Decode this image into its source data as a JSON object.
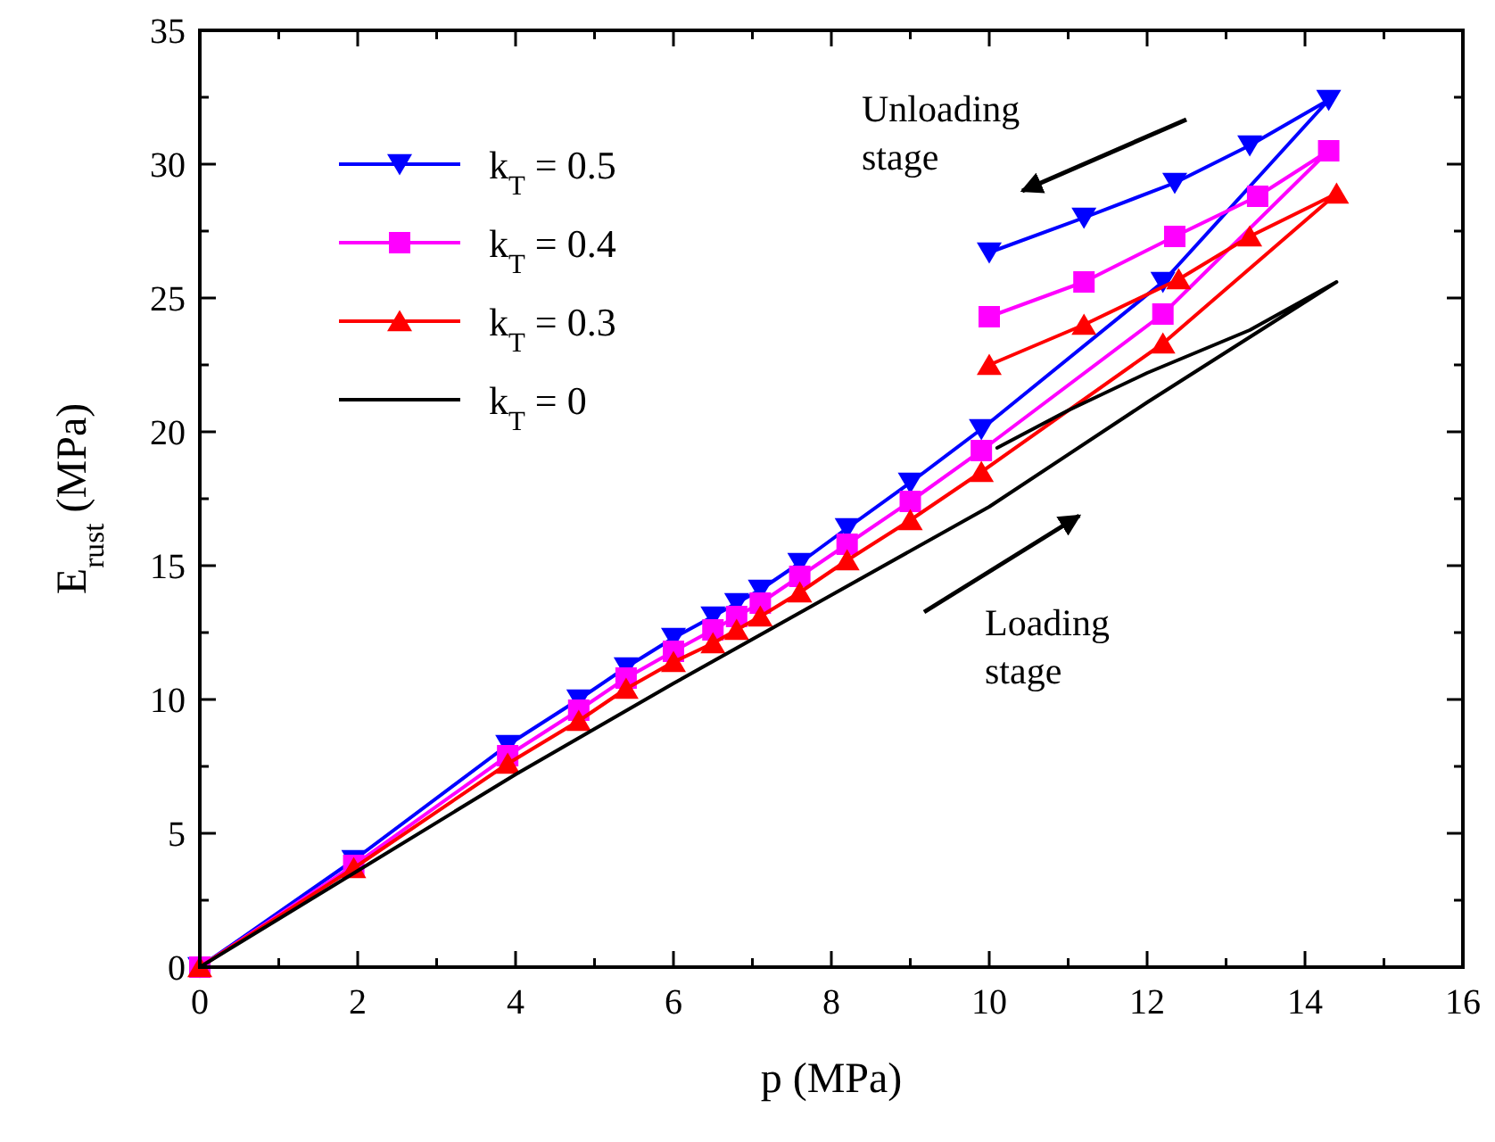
{
  "chart_data": {
    "type": "line",
    "xlabel": "p (MPa)",
    "ylabel": "E$_{rust}$ (MPa)",
    "xlim": [
      0,
      16
    ],
    "xticks": [
      0,
      {
        "value": 1,
        "label": null
      },
      2,
      {
        "value": 3,
        "label": null
      },
      4,
      {
        "value": 5,
        "label": null
      },
      6,
      {
        "value": 7,
        "label": null
      },
      8,
      {
        "value": 9,
        "label": null
      },
      10,
      {
        "value": 11,
        "label": null
      },
      12,
      {
        "value": 13,
        "label": null
      },
      14,
      {
        "value": 15,
        "label": null
      },
      16
    ],
    "ylim": [
      0,
      35
    ],
    "yticks": [
      0,
      {
        "value": 2.5,
        "label": null
      },
      5,
      {
        "value": 7.5,
        "label": null
      },
      10,
      {
        "value": 12.5,
        "label": null
      },
      15,
      {
        "value": 17.5,
        "label": null
      },
      20,
      {
        "value": 22.5,
        "label": null
      },
      25,
      {
        "value": 27.5,
        "label": null
      },
      30,
      {
        "value": 32.5,
        "label": null
      },
      35
    ],
    "grid": false,
    "legend": "top left",
    "line_style": "solid",
    "annotations": [
      "Unloading stage",
      "Loading stage"
    ],
    "series": [
      {
        "name": "k$_{T}$ = 0.5",
        "color": "#0000ff",
        "marker": "triangle-down",
        "x": [
          0,
          1.95,
          3.9,
          4.8,
          5.4,
          6.0,
          6.5,
          6.8,
          7.1,
          7.6,
          8.2,
          9.0,
          9.9,
          12.2,
          14.3,
          13.3,
          12.35,
          11.2,
          10.0
        ],
        "values": [
          0,
          4.0,
          8.3,
          10.0,
          11.2,
          12.3,
          13.1,
          13.6,
          14.1,
          15.1,
          16.4,
          18.1,
          20.1,
          25.6,
          32.4,
          30.7,
          29.3,
          28.0,
          26.7
        ]
      },
      {
        "name": "k$_{T}$ = 0.4",
        "color": "#ff00ff",
        "marker": "square",
        "x": [
          0,
          1.95,
          3.9,
          4.8,
          5.4,
          6.0,
          6.5,
          6.8,
          7.1,
          7.6,
          8.2,
          9.0,
          9.9,
          12.2,
          14.3,
          13.4,
          12.35,
          11.2,
          10.0
        ],
        "values": [
          0,
          3.8,
          7.9,
          9.6,
          10.8,
          11.8,
          12.6,
          13.1,
          13.6,
          14.6,
          15.8,
          17.4,
          19.3,
          24.4,
          30.5,
          28.8,
          27.3,
          25.6,
          24.3
        ]
      },
      {
        "name": "k$_{T}$ = 0.3",
        "color": "#ff0000",
        "marker": "triangle",
        "x": [
          0,
          1.95,
          3.9,
          4.8,
          5.4,
          6.0,
          6.5,
          6.8,
          7.1,
          7.6,
          8.2,
          9.0,
          9.9,
          12.2,
          14.4,
          13.3,
          12.4,
          11.2,
          10.0
        ],
        "values": [
          0,
          3.7,
          7.6,
          9.2,
          10.4,
          11.4,
          12.1,
          12.6,
          13.1,
          14.0,
          15.2,
          16.7,
          18.5,
          23.3,
          28.9,
          27.3,
          25.7,
          24.0,
          22.5
        ]
      },
      {
        "name": "k$_{T}$ = 0",
        "color": "#000000",
        "marker": "none",
        "x": [
          0,
          2,
          4,
          6,
          8,
          10,
          12,
          14.4,
          13.3,
          12,
          11,
          10.1
        ],
        "values": [
          0,
          3.6,
          7.2,
          10.6,
          13.9,
          17.2,
          21.1,
          25.6,
          23.8,
          22.2,
          20.8,
          19.4
        ]
      }
    ]
  }
}
